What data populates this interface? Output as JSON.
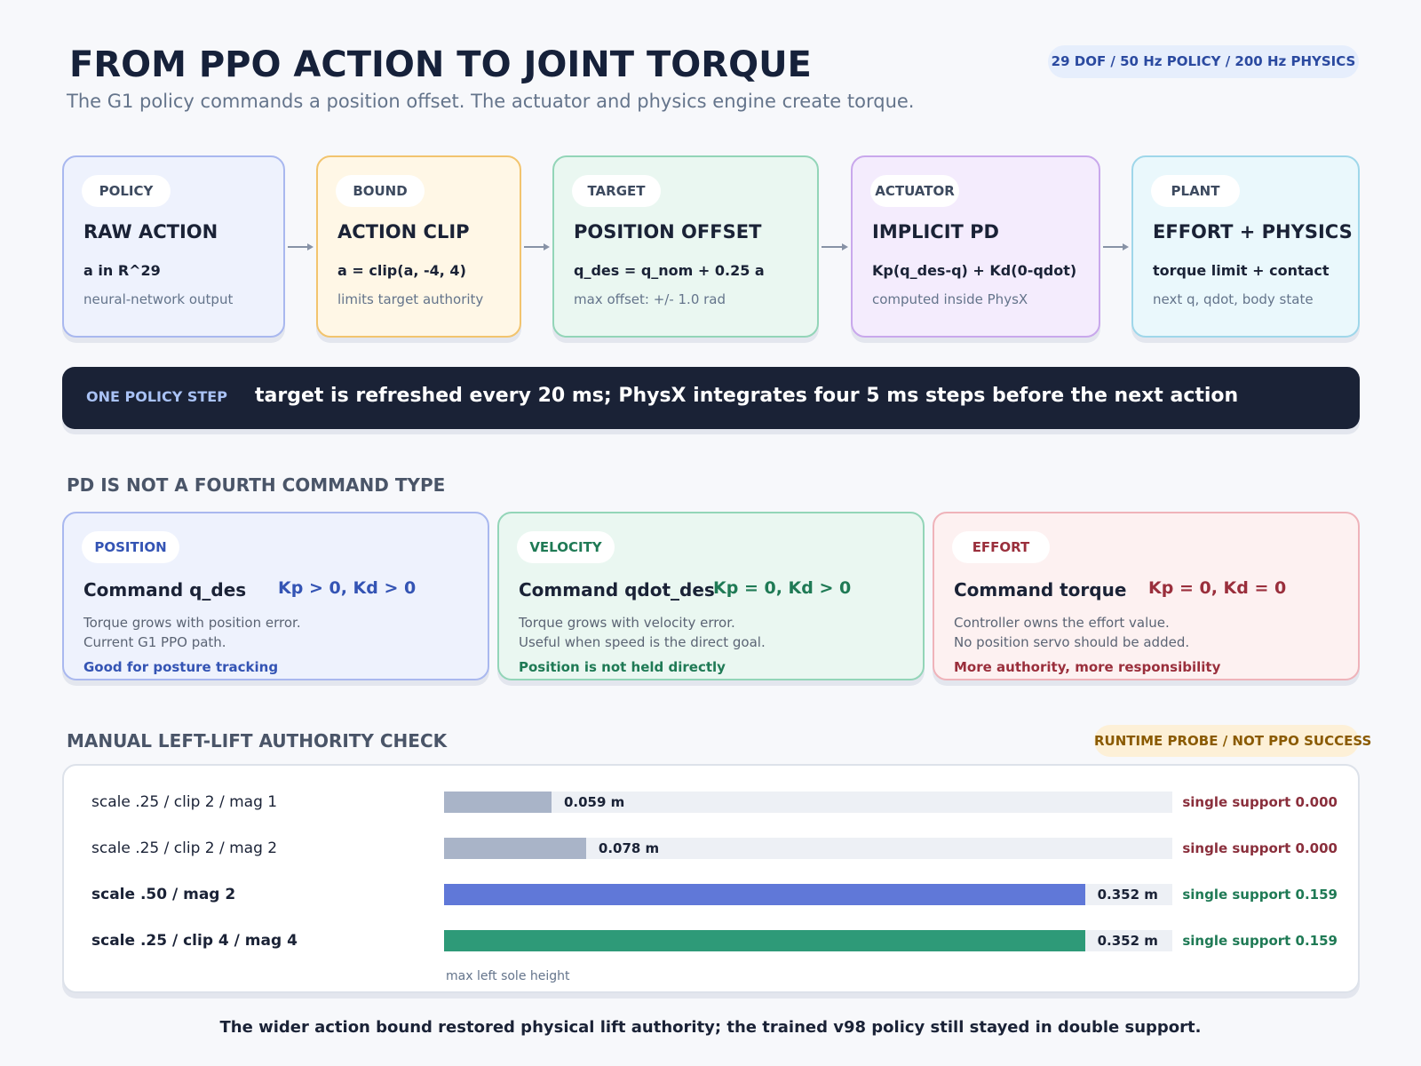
{
  "header": {
    "title": "FROM PPO ACTION TO JOINT TORQUE",
    "subtitle": "The G1 policy commands a position offset. The actuator and physics engine create torque.",
    "badge": "29 DOF / 50 Hz POLICY / 200 Hz PHYSICS"
  },
  "pipeline": [
    {
      "tag": "POLICY",
      "title": "RAW ACTION",
      "formula": "a in R^29",
      "note": "neural-network output"
    },
    {
      "tag": "BOUND",
      "title": "ACTION CLIP",
      "formula": "a = clip(a, -4, 4)",
      "note": "limits target authority"
    },
    {
      "tag": "TARGET",
      "title": "POSITION OFFSET",
      "formula": "q_des = q_nom + 0.25 a",
      "note": "max offset: +/- 1.0 rad"
    },
    {
      "tag": "ACTUATOR",
      "title": "IMPLICIT PD",
      "formula": "Kp(q_des-q) + Kd(0-qdot)",
      "note": "computed inside PhysX"
    },
    {
      "tag": "PLANT",
      "title": "EFFORT + PHYSICS",
      "formula": "torque limit + contact",
      "note": "next q, qdot, body state"
    }
  ],
  "policy_step": {
    "label": "ONE POLICY STEP",
    "text": "target is refreshed every 20 ms; PhysX integrates four 5 ms steps before the next action"
  },
  "modes": {
    "title": "PD IS NOT A FOURTH COMMAND TYPE",
    "items": [
      {
        "tag": "POSITION",
        "command": "Command q_des",
        "gains": "Kp > 0, Kd > 0",
        "lines": [
          "Torque grows with position error.",
          "Current G1 PPO path."
        ],
        "note": "Good for posture tracking"
      },
      {
        "tag": "VELOCITY",
        "command": "Command qdot_des",
        "gains": "Kp = 0, Kd > 0",
        "lines": [
          "Torque grows with velocity error.",
          "Useful when speed is the direct goal."
        ],
        "note": "Position is not held directly"
      },
      {
        "tag": "EFFORT",
        "command": "Command torque",
        "gains": "Kp = 0, Kd = 0",
        "lines": [
          "Controller owns the effort value.",
          "No position servo should be added."
        ],
        "note": "More authority, more responsibility"
      }
    ]
  },
  "lift_check": {
    "title": "MANUAL LEFT-LIFT AUTHORITY CHECK",
    "badge": "RUNTIME PROBE / NOT PPO SUCCESS",
    "xlim": [
      0,
      0.4
    ],
    "rows": [
      {
        "label": "scale .25 / clip 2 / mag 1",
        "value": 0.059,
        "value_label": "0.059 m",
        "color": "#a9b4c8",
        "support": "single support 0.000"
      },
      {
        "label": "scale .25 / clip 2 / mag 2",
        "value": 0.078,
        "value_label": "0.078 m",
        "color": "#a9b4c8",
        "support": "single support 0.000"
      },
      {
        "label": "scale .50 / mag 2",
        "value": 0.352,
        "value_label": "0.352 m",
        "color": "#6078d8",
        "support": "single support 0.159"
      },
      {
        "label": "scale .25 / clip 4 / mag 4",
        "value": 0.352,
        "value_label": "0.352 m",
        "color": "#2e9a78",
        "support": "single support 0.159"
      }
    ],
    "axis_label": "max left sole height"
  },
  "footer": "The wider action bound restored physical lift authority; the trained v98 policy still stayed in double support."
}
